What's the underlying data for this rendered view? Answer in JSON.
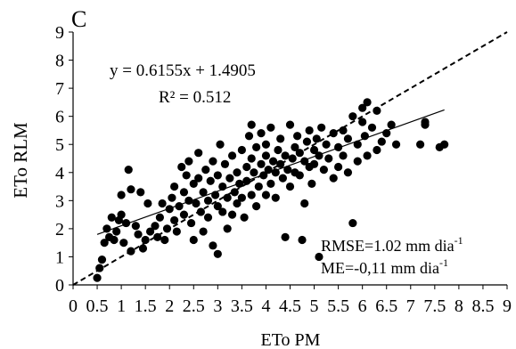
{
  "chart_data": {
    "type": "scatter",
    "panel_label": "C",
    "xlabel": "ETo PM",
    "ylabel": "ETo RLM",
    "xlim": [
      0,
      9
    ],
    "ylim": [
      0,
      9
    ],
    "x_ticks": [
      "0",
      "0.5",
      "1",
      "1.5",
      "2",
      "2.5",
      "3",
      "3.5",
      "4",
      "4.5",
      "5",
      "5.5",
      "6",
      "6.5",
      "7",
      "7.5",
      "8",
      "8.5",
      "9"
    ],
    "y_ticks": [
      "0",
      "1",
      "2",
      "3",
      "4",
      "5",
      "6",
      "7",
      "8",
      "9"
    ],
    "grid": false,
    "equation": "y = 0.6155x + 1.4905",
    "r2_label": "R² = 0.512",
    "rmse_text": "RMSE=1.02 mm dia",
    "rmse_sup": "-1",
    "me_text": "ME=-0,11 mm dia",
    "me_sup": "-1",
    "trendline": {
      "slope": 0.6155,
      "intercept": 1.4905,
      "x_range": [
        0.5,
        7.7
      ]
    },
    "reference_line": {
      "type": "1:1",
      "style": "dashed"
    },
    "points": [
      [
        0.5,
        0.25
      ],
      [
        0.55,
        0.6
      ],
      [
        0.6,
        0.9
      ],
      [
        0.65,
        1.5
      ],
      [
        0.7,
        2.0
      ],
      [
        0.75,
        1.7
      ],
      [
        0.8,
        2.4
      ],
      [
        0.85,
        1.6
      ],
      [
        0.9,
        1.9
      ],
      [
        0.95,
        2.3
      ],
      [
        1.0,
        2.5
      ],
      [
        1.0,
        3.2
      ],
      [
        1.05,
        1.5
      ],
      [
        1.1,
        2.2
      ],
      [
        1.15,
        4.1
      ],
      [
        1.2,
        1.2
      ],
      [
        1.2,
        3.4
      ],
      [
        1.3,
        2.1
      ],
      [
        1.35,
        1.8
      ],
      [
        1.4,
        3.3
      ],
      [
        1.45,
        1.3
      ],
      [
        1.5,
        1.6
      ],
      [
        1.55,
        2.9
      ],
      [
        1.6,
        1.9
      ],
      [
        1.7,
        2.1
      ],
      [
        1.75,
        1.7
      ],
      [
        1.8,
        2.4
      ],
      [
        1.85,
        2.9
      ],
      [
        1.9,
        1.6
      ],
      [
        1.95,
        2.0
      ],
      [
        2.0,
        2.7
      ],
      [
        2.05,
        3.1
      ],
      [
        2.1,
        2.3
      ],
      [
        2.1,
        3.5
      ],
      [
        2.15,
        1.9
      ],
      [
        2.2,
        2.8
      ],
      [
        2.25,
        4.2
      ],
      [
        2.3,
        3.3
      ],
      [
        2.3,
        2.5
      ],
      [
        2.35,
        3.9
      ],
      [
        2.4,
        3.0
      ],
      [
        2.4,
        4.4
      ],
      [
        2.45,
        2.2
      ],
      [
        2.5,
        3.6
      ],
      [
        2.5,
        1.6
      ],
      [
        2.55,
        2.9
      ],
      [
        2.6,
        3.8
      ],
      [
        2.6,
        4.7
      ],
      [
        2.65,
        2.6
      ],
      [
        2.7,
        3.3
      ],
      [
        2.7,
        1.9
      ],
      [
        2.75,
        4.1
      ],
      [
        2.8,
        3.0
      ],
      [
        2.8,
        2.4
      ],
      [
        2.85,
        3.7
      ],
      [
        2.9,
        4.4
      ],
      [
        2.9,
        1.4
      ],
      [
        2.95,
        3.2
      ],
      [
        3.0,
        2.8
      ],
      [
        3.0,
        3.9
      ],
      [
        3.0,
        1.1
      ],
      [
        3.05,
        5.0
      ],
      [
        3.1,
        3.5
      ],
      [
        3.1,
        2.6
      ],
      [
        3.15,
        4.3
      ],
      [
        3.2,
        3.1
      ],
      [
        3.2,
        2.0
      ],
      [
        3.25,
        3.8
      ],
      [
        3.3,
        4.6
      ],
      [
        3.3,
        2.5
      ],
      [
        3.35,
        3.3
      ],
      [
        3.4,
        4.0
      ],
      [
        3.4,
        2.9
      ],
      [
        3.45,
        3.6
      ],
      [
        3.5,
        4.8
      ],
      [
        3.5,
        3.1
      ],
      [
        3.55,
        2.4
      ],
      [
        3.6,
        4.2
      ],
      [
        3.6,
        3.7
      ],
      [
        3.65,
        5.3
      ],
      [
        3.7,
        4.5
      ],
      [
        3.7,
        3.2
      ],
      [
        3.7,
        5.7
      ],
      [
        3.75,
        4.0
      ],
      [
        3.8,
        2.8
      ],
      [
        3.8,
        4.9
      ],
      [
        3.85,
        3.5
      ],
      [
        3.9,
        4.3
      ],
      [
        3.9,
        5.4
      ],
      [
        3.95,
        3.9
      ],
      [
        4.0,
        4.6
      ],
      [
        4.0,
        3.2
      ],
      [
        4.0,
        5.0
      ],
      [
        4.05,
        4.1
      ],
      [
        4.1,
        3.6
      ],
      [
        4.1,
        5.6
      ],
      [
        4.15,
        4.4
      ],
      [
        4.2,
        4.0
      ],
      [
        4.2,
        3.1
      ],
      [
        4.25,
        4.8
      ],
      [
        4.3,
        4.3
      ],
      [
        4.3,
        5.2
      ],
      [
        4.35,
        3.8
      ],
      [
        4.4,
        4.6
      ],
      [
        4.4,
        1.7
      ],
      [
        4.45,
        4.1
      ],
      [
        4.5,
        5.7
      ],
      [
        4.5,
        3.5
      ],
      [
        4.55,
        4.5
      ],
      [
        4.6,
        4.9
      ],
      [
        4.6,
        4.0
      ],
      [
        4.65,
        5.3
      ],
      [
        4.7,
        3.9
      ],
      [
        4.7,
        4.7
      ],
      [
        4.75,
        1.6
      ],
      [
        4.8,
        4.4
      ],
      [
        4.8,
        2.9
      ],
      [
        4.85,
        5.1
      ],
      [
        4.9,
        4.2
      ],
      [
        4.9,
        5.5
      ],
      [
        4.95,
        3.6
      ],
      [
        5.0,
        4.8
      ],
      [
        5.0,
        4.3
      ],
      [
        5.05,
        5.2
      ],
      [
        5.1,
        4.6
      ],
      [
        5.1,
        1.0
      ],
      [
        5.15,
        5.6
      ],
      [
        5.2,
        4.1
      ],
      [
        5.25,
        5.0
      ],
      [
        5.3,
        4.5
      ],
      [
        5.4,
        5.4
      ],
      [
        5.4,
        3.8
      ],
      [
        5.5,
        4.9
      ],
      [
        5.5,
        4.2
      ],
      [
        5.6,
        5.5
      ],
      [
        5.6,
        4.6
      ],
      [
        5.7,
        5.2
      ],
      [
        5.7,
        4.0
      ],
      [
        5.8,
        6.0
      ],
      [
        5.8,
        2.2
      ],
      [
        5.9,
        5.0
      ],
      [
        5.9,
        4.4
      ],
      [
        6.0,
        5.8
      ],
      [
        6.0,
        6.3
      ],
      [
        6.05,
        5.3
      ],
      [
        6.1,
        6.5
      ],
      [
        6.1,
        4.6
      ],
      [
        6.2,
        5.6
      ],
      [
        6.3,
        6.2
      ],
      [
        6.3,
        4.8
      ],
      [
        6.4,
        5.1
      ],
      [
        6.5,
        5.4
      ],
      [
        6.6,
        5.7
      ],
      [
        6.7,
        5.0
      ],
      [
        7.2,
        5.0
      ],
      [
        7.3,
        5.7
      ],
      [
        7.3,
        5.8
      ],
      [
        7.6,
        4.9
      ],
      [
        7.7,
        5.0
      ]
    ]
  }
}
